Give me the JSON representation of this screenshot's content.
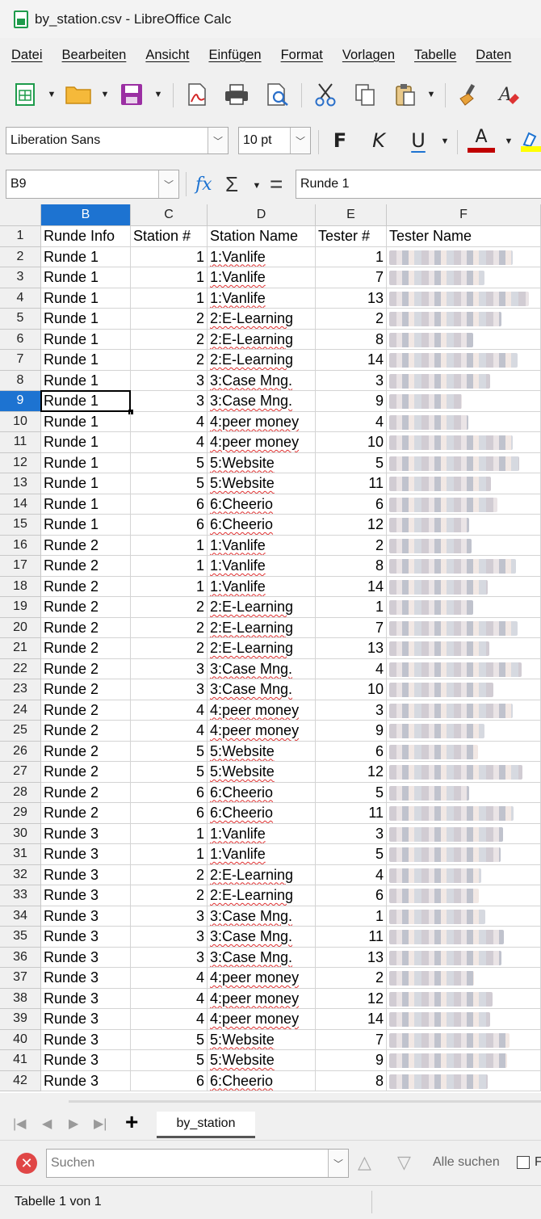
{
  "window": {
    "title": "by_station.csv - LibreOffice Calc"
  },
  "menu": [
    "Datei",
    "Bearbeiten",
    "Ansicht",
    "Einfügen",
    "Format",
    "Vorlagen",
    "Tabelle",
    "Daten"
  ],
  "format_toolbar": {
    "font_name": "Liberation Sans",
    "font_size": "10 pt",
    "bold": "F",
    "italic": "K",
    "underline": "U",
    "font_color": "A"
  },
  "formula_bar": {
    "name_box": "B9",
    "fx": "fx",
    "sum": "Σ",
    "equals": "=",
    "content": "Runde 1"
  },
  "columns": [
    "B",
    "C",
    "D",
    "E",
    "F"
  ],
  "selected_column": "B",
  "selected_row": 9,
  "header_row": {
    "row": 1,
    "cells": [
      "Runde Info",
      "Station #",
      "Station Name",
      "Tester #",
      "Tester Name"
    ]
  },
  "rows": [
    {
      "n": 2,
      "info": "Runde 1",
      "station": 1,
      "name": "1:Vanlife",
      "tester": 1
    },
    {
      "n": 3,
      "info": "Runde 1",
      "station": 1,
      "name": "1:Vanlife",
      "tester": 7
    },
    {
      "n": 4,
      "info": "Runde 1",
      "station": 1,
      "name": "1:Vanlife",
      "tester": 13
    },
    {
      "n": 5,
      "info": "Runde 1",
      "station": 2,
      "name": "2:E-Learning",
      "tester": 2
    },
    {
      "n": 6,
      "info": "Runde 1",
      "station": 2,
      "name": "2:E-Learning",
      "tester": 8
    },
    {
      "n": 7,
      "info": "Runde 1",
      "station": 2,
      "name": "2:E-Learning",
      "tester": 14
    },
    {
      "n": 8,
      "info": "Runde 1",
      "station": 3,
      "name": "3:Case Mng.",
      "tester": 3
    },
    {
      "n": 9,
      "info": "Runde 1",
      "station": 3,
      "name": "3:Case Mng.",
      "tester": 9
    },
    {
      "n": 10,
      "info": "Runde 1",
      "station": 4,
      "name": "4:peer money",
      "tester": 4
    },
    {
      "n": 11,
      "info": "Runde 1",
      "station": 4,
      "name": "4:peer money",
      "tester": 10
    },
    {
      "n": 12,
      "info": "Runde 1",
      "station": 5,
      "name": "5:Website",
      "tester": 5
    },
    {
      "n": 13,
      "info": "Runde 1",
      "station": 5,
      "name": "5:Website",
      "tester": 11
    },
    {
      "n": 14,
      "info": "Runde 1",
      "station": 6,
      "name": "6:Cheerio",
      "tester": 6
    },
    {
      "n": 15,
      "info": "Runde 1",
      "station": 6,
      "name": "6:Cheerio",
      "tester": 12
    },
    {
      "n": 16,
      "info": "Runde 2",
      "station": 1,
      "name": "1:Vanlife",
      "tester": 2
    },
    {
      "n": 17,
      "info": "Runde 2",
      "station": 1,
      "name": "1:Vanlife",
      "tester": 8
    },
    {
      "n": 18,
      "info": "Runde 2",
      "station": 1,
      "name": "1:Vanlife",
      "tester": 14
    },
    {
      "n": 19,
      "info": "Runde 2",
      "station": 2,
      "name": "2:E-Learning",
      "tester": 1
    },
    {
      "n": 20,
      "info": "Runde 2",
      "station": 2,
      "name": "2:E-Learning",
      "tester": 7
    },
    {
      "n": 21,
      "info": "Runde 2",
      "station": 2,
      "name": "2:E-Learning",
      "tester": 13
    },
    {
      "n": 22,
      "info": "Runde 2",
      "station": 3,
      "name": "3:Case Mng.",
      "tester": 4
    },
    {
      "n": 23,
      "info": "Runde 2",
      "station": 3,
      "name": "3:Case Mng.",
      "tester": 10
    },
    {
      "n": 24,
      "info": "Runde 2",
      "station": 4,
      "name": "4:peer money",
      "tester": 3
    },
    {
      "n": 25,
      "info": "Runde 2",
      "station": 4,
      "name": "4:peer money",
      "tester": 9
    },
    {
      "n": 26,
      "info": "Runde 2",
      "station": 5,
      "name": "5:Website",
      "tester": 6
    },
    {
      "n": 27,
      "info": "Runde 2",
      "station": 5,
      "name": "5:Website",
      "tester": 12
    },
    {
      "n": 28,
      "info": "Runde 2",
      "station": 6,
      "name": "6:Cheerio",
      "tester": 5
    },
    {
      "n": 29,
      "info": "Runde 2",
      "station": 6,
      "name": "6:Cheerio",
      "tester": 11
    },
    {
      "n": 30,
      "info": "Runde 3",
      "station": 1,
      "name": "1:Vanlife",
      "tester": 3
    },
    {
      "n": 31,
      "info": "Runde 3",
      "station": 1,
      "name": "1:Vanlife",
      "tester": 5
    },
    {
      "n": 32,
      "info": "Runde 3",
      "station": 2,
      "name": "2:E-Learning",
      "tester": 4
    },
    {
      "n": 33,
      "info": "Runde 3",
      "station": 2,
      "name": "2:E-Learning",
      "tester": 6
    },
    {
      "n": 34,
      "info": "Runde 3",
      "station": 3,
      "name": "3:Case Mng.",
      "tester": 1
    },
    {
      "n": 35,
      "info": "Runde 3",
      "station": 3,
      "name": "3:Case Mng.",
      "tester": 11
    },
    {
      "n": 36,
      "info": "Runde 3",
      "station": 3,
      "name": "3:Case Mng.",
      "tester": 13
    },
    {
      "n": 37,
      "info": "Runde 3",
      "station": 4,
      "name": "4:peer money",
      "tester": 2
    },
    {
      "n": 38,
      "info": "Runde 3",
      "station": 4,
      "name": "4:peer money",
      "tester": 12
    },
    {
      "n": 39,
      "info": "Runde 3",
      "station": 4,
      "name": "4:peer money",
      "tester": 14
    },
    {
      "n": 40,
      "info": "Runde 3",
      "station": 5,
      "name": "5:Website",
      "tester": 7
    },
    {
      "n": 41,
      "info": "Runde 3",
      "station": 5,
      "name": "5:Website",
      "tester": 9
    },
    {
      "n": 42,
      "info": "Runde 3",
      "station": 6,
      "name": "6:Cheerio",
      "tester": 8
    }
  ],
  "sheet_tabs": {
    "active": "by_station",
    "add": "+"
  },
  "find_bar": {
    "placeholder": "Suchen",
    "find_all": "Alle suchen",
    "truncated_option": "F"
  },
  "status_bar": {
    "sheet_info": "Tabelle 1 von 1"
  },
  "colors": {
    "accent": "#1d73d1",
    "spell_underline": "#e03030",
    "font_color_bar": "#c00000",
    "highlight_bar": "#ffff00"
  }
}
